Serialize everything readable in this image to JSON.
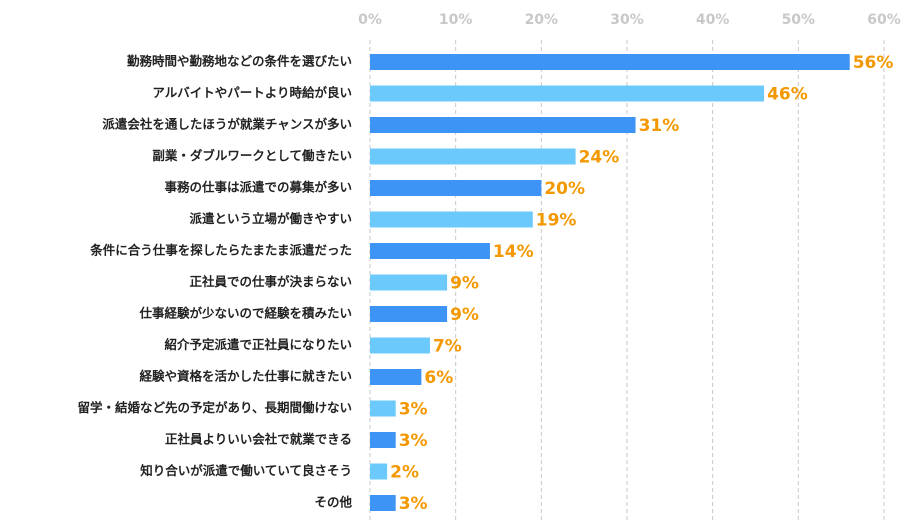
{
  "chart_data": {
    "type": "hbar",
    "categories": [
      "勤務時間や勤務地などの条件を選びたい",
      "アルバイトやパートより時給が良い",
      "派遣会社を通したほうが就業チャンスが多い",
      "副業・ダブルワークとして働きたい",
      "事務の仕事は派遣での募集が多い",
      "派遣という立場が働きやすい",
      "条件に合う仕事を探したらたまたま派遣だった",
      "正社員での仕事が決まらない",
      "仕事経験が少ないので経験を積みたい",
      "紹介予定派遣で正社員になりたい",
      "経験や資格を活かした仕事に就きたい",
      "留学・結婚など先の予定があり、長期間働けない",
      "正社員よりいい会社で就業できる",
      "知り合いが派遣で働いていて良さそう",
      "その他"
    ],
    "values": [
      56,
      46,
      31,
      24,
      20,
      19,
      14,
      9,
      9,
      7,
      6,
      3,
      3,
      2,
      3
    ],
    "value_labels": [
      "56%",
      "46%",
      "31%",
      "24%",
      "20%",
      "19%",
      "14%",
      "9%",
      "9%",
      "7%",
      "6%",
      "3%",
      "3%",
      "2%",
      "3%"
    ],
    "colors": [
      "#3d94f4",
      "#6cc9fb",
      "#3d94f4",
      "#6cc9fb",
      "#3d94f4",
      "#6cc9fb",
      "#3d94f4",
      "#6cc9fb",
      "#3d94f4",
      "#6cc9fb",
      "#3d94f4",
      "#6cc9fb",
      "#3d94f4",
      "#6cc9fb",
      "#3d94f4"
    ],
    "label_color": "#f39800",
    "xlim": [
      0,
      60
    ],
    "xticks": [
      {
        "value": 0,
        "label": "0%"
      },
      {
        "value": 10,
        "label": "10%"
      },
      {
        "value": 20,
        "label": "20%"
      },
      {
        "value": 30,
        "label": "30%"
      },
      {
        "value": 40,
        "label": "40%"
      },
      {
        "value": 50,
        "label": "50%"
      },
      {
        "value": 60,
        "label": "60%"
      }
    ],
    "grid": true
  }
}
